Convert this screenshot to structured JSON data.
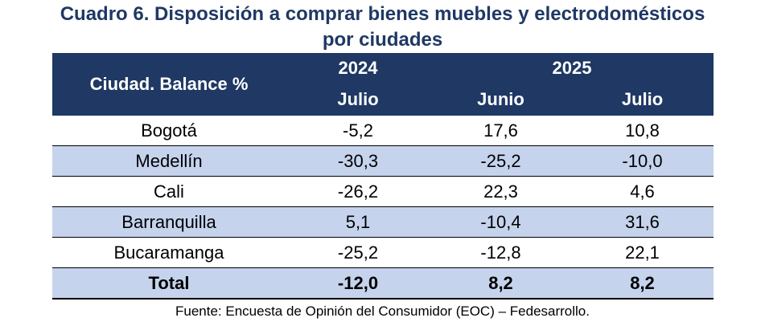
{
  "title_line1": "Cuadro 6. Disposición a comprar bienes muebles y electrodomésticos",
  "title_line2": "por ciudades",
  "header": {
    "row_label": "Ciudad. Balance %",
    "year_2024": "2024",
    "year_2025": "2025",
    "col1": "Julio",
    "col2": "Junio",
    "col3": "Julio"
  },
  "rows": [
    {
      "city": "Bogotá",
      "v1": "-5,2",
      "v2": "17,6",
      "v3": "10,8"
    },
    {
      "city": "Medellín",
      "v1": "-30,3",
      "v2": "-25,2",
      "v3": "-10,0"
    },
    {
      "city": "Cali",
      "v1": "-26,2",
      "v2": "22,3",
      "v3": "4,6"
    },
    {
      "city": "Barranquilla",
      "v1": "5,1",
      "v2": "-10,4",
      "v3": "31,6"
    },
    {
      "city": "Bucaramanga",
      "v1": "-25,2",
      "v2": "-12,8",
      "v3": "22,1"
    },
    {
      "city": "Total",
      "v1": "-12,0",
      "v2": "8,2",
      "v3": "8,2"
    }
  ],
  "source": "Fuente: Encuesta de Opinión del Consumidor (EOC) – Fedesarrollo.",
  "colors": {
    "header_bg": "#1f3864",
    "band_bg": "#c5d3ed",
    "title": "#1f3864"
  }
}
